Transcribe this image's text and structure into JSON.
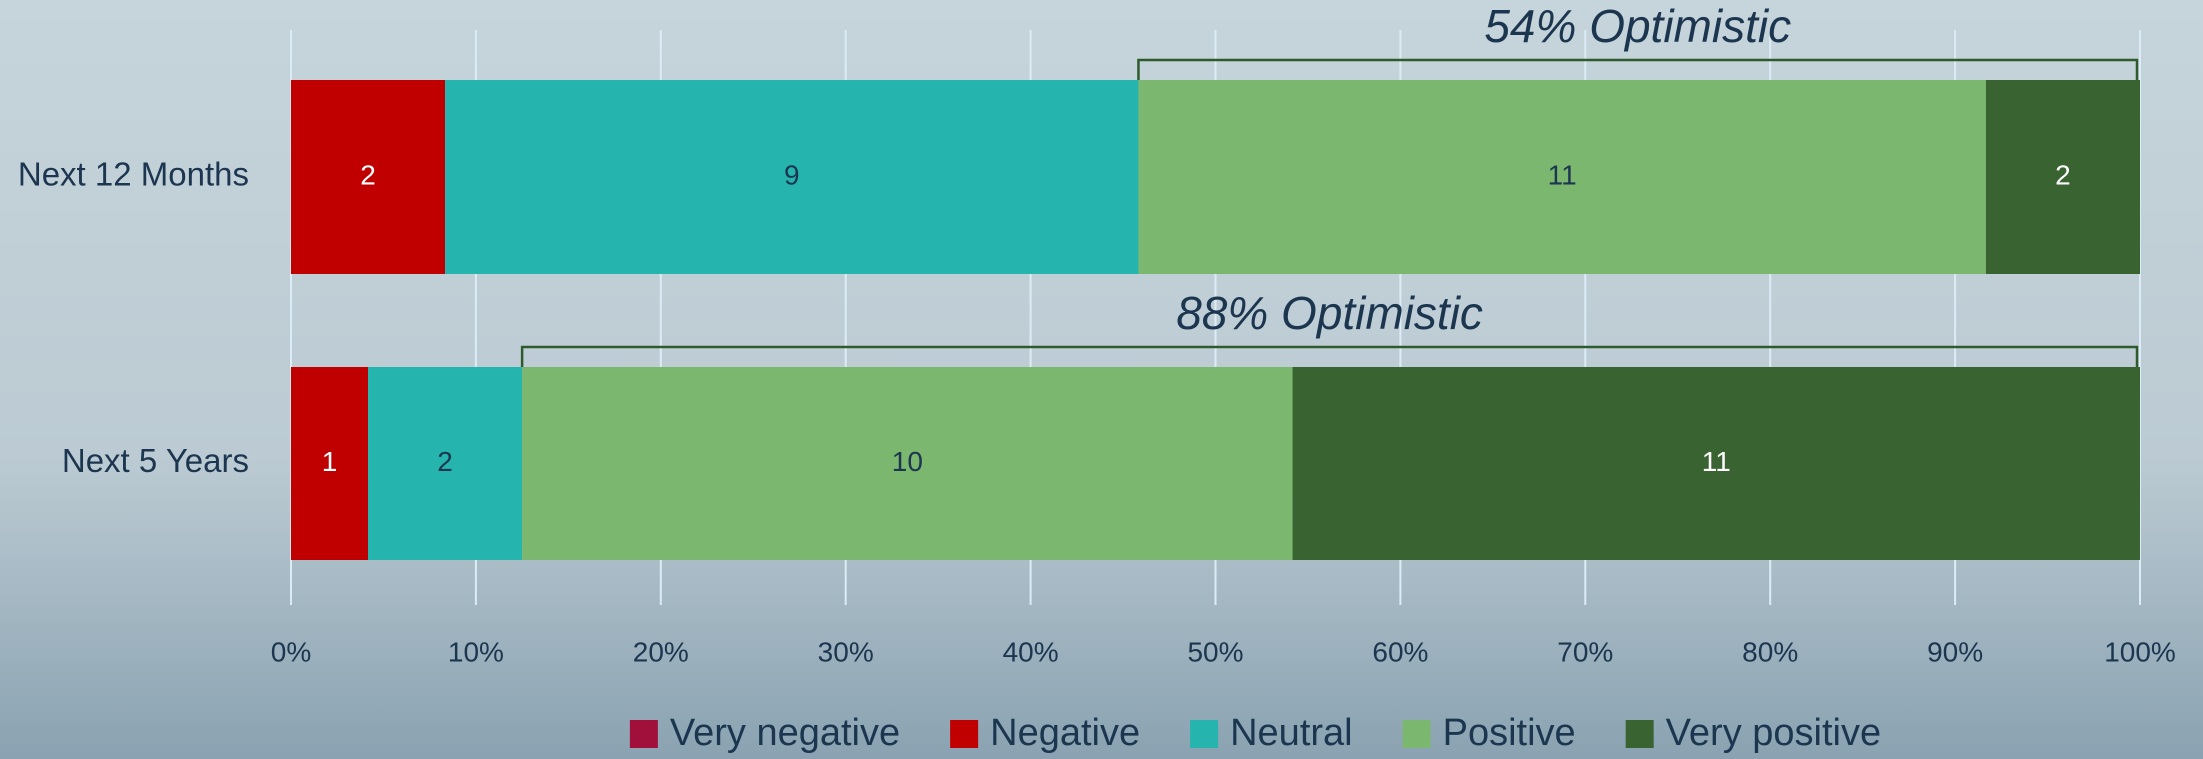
{
  "chart_data": {
    "type": "bar",
    "orientation": "horizontal",
    "stacked": "percent",
    "categories": [
      "Next 12 Months",
      "Next 5 Years"
    ],
    "series": [
      {
        "name": "Very negative",
        "color": "#a10f3b",
        "label_color": "#ffffff",
        "values": [
          0,
          0
        ]
      },
      {
        "name": "Negative",
        "color": "#c00000",
        "label_color": "#ffffff",
        "values": [
          2,
          1
        ]
      },
      {
        "name": "Neutral",
        "color": "#25b5ae",
        "label_color": "#1c3650",
        "values": [
          9,
          2
        ]
      },
      {
        "name": "Positive",
        "color": "#7cb770",
        "label_color": "#1c3650",
        "values": [
          11,
          10
        ]
      },
      {
        "name": "Very positive",
        "color": "#3a6332",
        "label_color": "#ffffff",
        "values": [
          2,
          11
        ]
      }
    ],
    "annotations": [
      "54% Optimistic",
      "88% Optimistic"
    ],
    "xlim": [
      0,
      100
    ],
    "xticks": [
      {
        "value": 0,
        "label": "0%"
      },
      {
        "value": 10,
        "label": "10%"
      },
      {
        "value": 20,
        "label": "20%"
      },
      {
        "value": 30,
        "label": "30%"
      },
      {
        "value": 40,
        "label": "40%"
      },
      {
        "value": 50,
        "label": "50%"
      },
      {
        "value": 60,
        "label": "60%"
      },
      {
        "value": 70,
        "label": "70%"
      },
      {
        "value": 80,
        "label": "80%"
      },
      {
        "value": 90,
        "label": "90%"
      },
      {
        "value": 100,
        "label": "100%"
      }
    ],
    "grid": true,
    "legend": "bottom"
  }
}
